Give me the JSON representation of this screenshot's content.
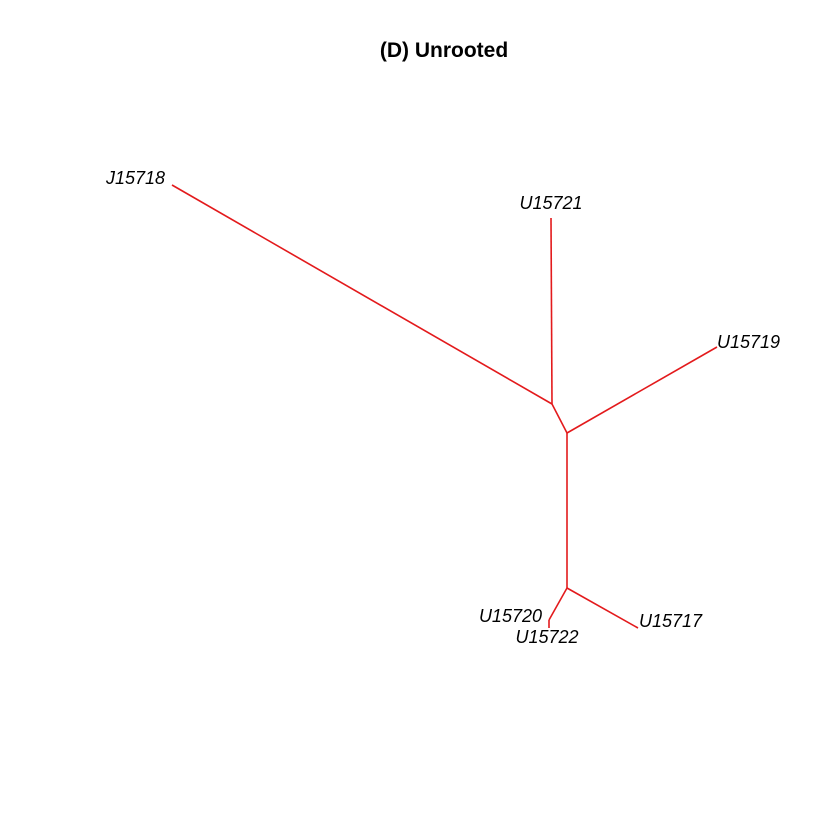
{
  "title": "(D) Unrooted",
  "colors": {
    "branch": "#e31a1c",
    "text": "#000000",
    "background": "#ffffff"
  },
  "tree": {
    "type": "unrooted-phylogram",
    "tips": {
      "t1": "J15718",
      "t2": "U15721",
      "t3": "U15719",
      "t4": "U15720",
      "t5": "U15722",
      "t6": "U15717"
    }
  }
}
